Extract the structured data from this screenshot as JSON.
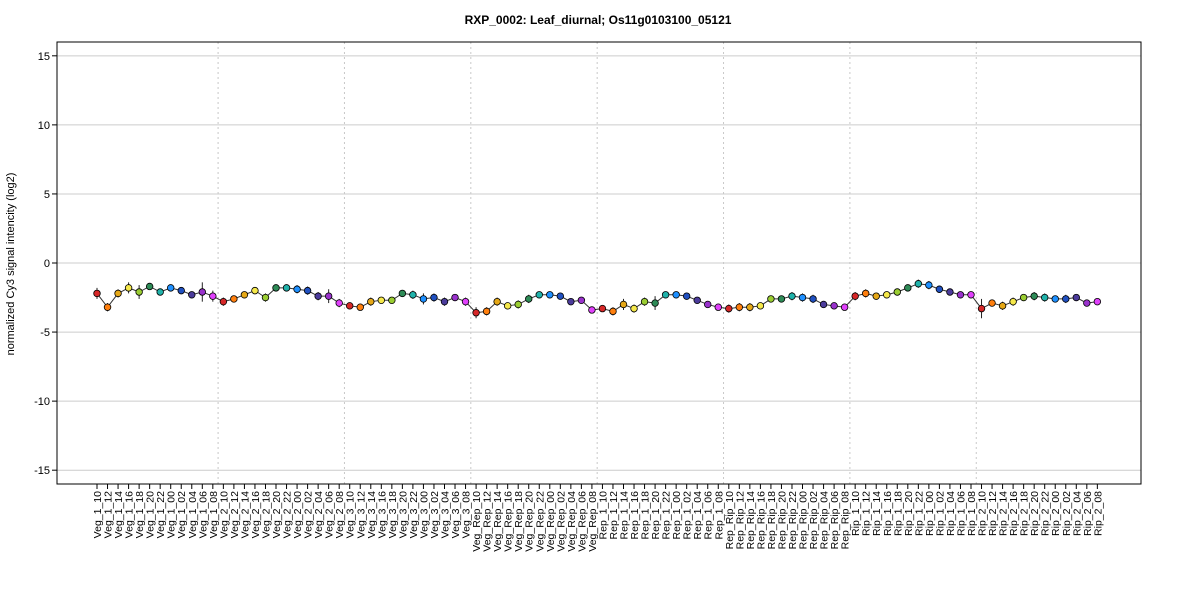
{
  "chart_data": {
    "type": "line",
    "title": "RXP_0002: Leaf_diurnal; Os11g0103100_05121",
    "xlabel": "",
    "ylabel": "normalized Cy3 signal intencity (log2)",
    "ylim": [
      -16,
      16
    ],
    "yticks": [
      "-15",
      "-10",
      "-5",
      "0",
      "5",
      "10",
      "15"
    ],
    "grid": true,
    "categories": [
      "Veg_1_10",
      "Veg_1_12",
      "Veg_1_14",
      "Veg_1_16",
      "Veg_1_18",
      "Veg_1_20",
      "Veg_1_22",
      "Veg_1_00",
      "Veg_1_02",
      "Veg_1_04",
      "Veg_1_06",
      "Veg_1_08",
      "Veg_2_10",
      "Veg_2_12",
      "Veg_2_14",
      "Veg_2_16",
      "Veg_2_18",
      "Veg_2_20",
      "Veg_2_22",
      "Veg_2_00",
      "Veg_2_02",
      "Veg_2_04",
      "Veg_2_06",
      "Veg_2_08",
      "Veg_3_10",
      "Veg_3_12",
      "Veg_3_14",
      "Veg_3_16",
      "Veg_3_18",
      "Veg_3_20",
      "Veg_3_22",
      "Veg_3_00",
      "Veg_3_02",
      "Veg_3_04",
      "Veg_3_06",
      "Veg_3_08",
      "Veg_Rep_10",
      "Veg_Rep_12",
      "Veg_Rep_14",
      "Veg_Rep_16",
      "Veg_Rep_18",
      "Veg_Rep_20",
      "Veg_Rep_22",
      "Veg_Rep_00",
      "Veg_Rep_02",
      "Veg_Rep_04",
      "Veg_Rep_06",
      "Veg_Rep_08",
      "Rep_1_10",
      "Rep_1_12",
      "Rep_1_14",
      "Rep_1_16",
      "Rep_1_18",
      "Rep_1_20",
      "Rep_1_22",
      "Rep_1_00",
      "Rep_1_02",
      "Rep_1_04",
      "Rep_1_06",
      "Rep_1_08",
      "Rep_Rip_10",
      "Rep_Rip_12",
      "Rep_Rip_14",
      "Rep_Rip_16",
      "Rep_Rip_18",
      "Rep_Rip_20",
      "Rep_Rip_22",
      "Rep_Rip_00",
      "Rep_Rip_02",
      "Rep_Rip_04",
      "Rep_Rip_06",
      "Rep_Rip_08",
      "Rip_1_10",
      "Rip_1_12",
      "Rip_1_14",
      "Rip_1_16",
      "Rip_1_18",
      "Rip_1_20",
      "Rip_1_22",
      "Rip_1_00",
      "Rip_1_02",
      "Rip_1_04",
      "Rip_1_06",
      "Rip_1_08",
      "Rip_2_10",
      "Rip_2_12",
      "Rip_2_14",
      "Rip_2_16",
      "Rip_2_18",
      "Rip_2_20",
      "Rip_2_22",
      "Rip_2_00",
      "Rip_2_02",
      "Rip_2_04",
      "Rip_2_06",
      "Rip_2_08"
    ],
    "values": [
      -2.2,
      -3.2,
      -2.2,
      -1.8,
      -2.1,
      -1.7,
      -2.1,
      -1.8,
      -2.0,
      -2.3,
      -2.1,
      -2.4,
      -2.8,
      -2.6,
      -2.3,
      -2.0,
      -2.5,
      -1.8,
      -1.8,
      -1.9,
      -2.0,
      -2.4,
      -2.4,
      -2.9,
      -3.1,
      -3.2,
      -2.8,
      -2.7,
      -2.7,
      -2.2,
      -2.3,
      -2.6,
      -2.5,
      -2.8,
      -2.5,
      -2.8,
      -3.6,
      -3.5,
      -2.8,
      -3.1,
      -3.0,
      -2.6,
      -2.3,
      -2.3,
      -2.4,
      -2.8,
      -2.7,
      -3.4,
      -3.3,
      -3.5,
      -3.0,
      -3.3,
      -2.8,
      -2.9,
      -2.3,
      -2.3,
      -2.4,
      -2.7,
      -3.0,
      -3.2,
      -3.3,
      -3.2,
      -3.2,
      -3.1,
      -2.6,
      -2.6,
      -2.4,
      -2.5,
      -2.6,
      -3.0,
      -3.1,
      -3.2,
      -2.4,
      -2.2,
      -2.4,
      -2.3,
      -2.1,
      -1.8,
      -1.5,
      -1.6,
      -1.9,
      -2.1,
      -2.3,
      -2.3,
      -3.3,
      -2.9,
      -3.1,
      -2.8,
      -2.5,
      -2.4,
      -2.5,
      -2.6,
      -2.6,
      -2.5,
      -2.9,
      -2.8
    ],
    "errors": [
      0.4,
      0.3,
      0.3,
      0.4,
      0.5,
      0.2,
      0.2,
      0.2,
      0.2,
      0.2,
      0.7,
      0.4,
      0.3,
      0.2,
      0.2,
      0.2,
      0.3,
      0.2,
      0.2,
      0.3,
      0.3,
      0.3,
      0.5,
      0.3,
      0.2,
      0.2,
      0.3,
      0.2,
      0.2,
      0.2,
      0.3,
      0.4,
      0.3,
      0.3,
      0.2,
      0.3,
      0.4,
      0.3,
      0.3,
      0.2,
      0.3,
      0.3,
      0.2,
      0.2,
      0.2,
      0.2,
      0.2,
      0.2,
      0.2,
      0.3,
      0.4,
      0.3,
      0.3,
      0.5,
      0.2,
      0.2,
      0.2,
      0.2,
      0.2,
      0.2,
      0.3,
      0.3,
      0.3,
      0.2,
      0.2,
      0.2,
      0.3,
      0.3,
      0.3,
      0.2,
      0.2,
      0.2,
      0.3,
      0.3,
      0.2,
      0.2,
      0.2,
      0.2,
      0.3,
      0.3,
      0.2,
      0.2,
      0.2,
      0.2,
      0.7,
      0.2,
      0.3,
      0.3,
      0.2,
      0.3,
      0.3,
      0.2,
      0.3,
      0.2,
      0.2,
      0.2
    ],
    "group_size": 12,
    "point_colors": [
      "#d62728",
      "#ff7f0e",
      "#e6a817",
      "#f5e84a",
      "#9acd32",
      "#2e8b57",
      "#20b2aa",
      "#1e90ff",
      "#2050c0",
      "#4b3b9b",
      "#9932cc",
      "#e040fb"
    ],
    "line_color": "#333333",
    "grid_color": "#cccccc"
  }
}
